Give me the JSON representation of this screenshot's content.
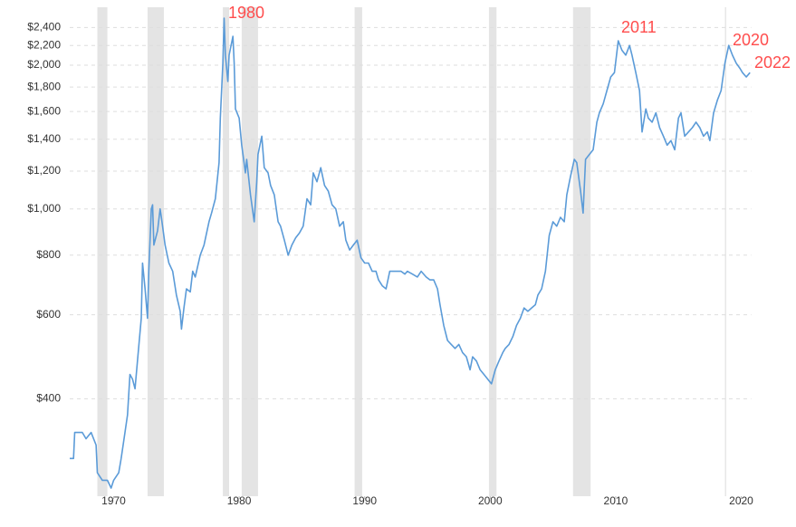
{
  "chart_data": {
    "type": "line",
    "log_scale": true,
    "grid": true,
    "color": "#5b9bd8",
    "recession_color": "#e4e4e4",
    "annotation_color": "#ff4d4d",
    "annotations": [
      "1980",
      "2011",
      "2020",
      "2022"
    ],
    "xlim": [
      1966.5,
      2020.8
    ],
    "xticks": [
      1970,
      1980,
      1990,
      2000,
      2010,
      2020
    ],
    "ylim": [
      250,
      2600
    ],
    "yticks": [
      {
        "value": 400,
        "label": "$400"
      },
      {
        "value": 600,
        "label": "$600"
      },
      {
        "value": 800,
        "label": "$800"
      },
      {
        "value": 1000,
        "label": "$1,000"
      },
      {
        "value": 1200,
        "label": "$1,200"
      },
      {
        "value": 1400,
        "label": "$1,400"
      },
      {
        "value": 1600,
        "label": "$1,600"
      },
      {
        "value": 1800,
        "label": "$1,800"
      },
      {
        "value": 2000,
        "label": "$2,000"
      },
      {
        "value": 2200,
        "label": "$2,200"
      },
      {
        "value": 2400,
        "label": "$2,400"
      }
    ],
    "recessions": [
      [
        1968.7,
        1969.5
      ],
      [
        1972.7,
        1974.0
      ],
      [
        1978.7,
        1979.2
      ],
      [
        1980.2,
        1981.5
      ],
      [
        1989.2,
        1989.8
      ],
      [
        1999.9,
        2000.5
      ],
      [
        2006.6,
        2008.0
      ],
      [
        2018.7,
        2018.8
      ]
    ],
    "x": [
      1966.5,
      1966.8,
      1966.9,
      1967.5,
      1967.8,
      1968.2,
      1968.6,
      1968.7,
      1969.1,
      1969.5,
      1969.8,
      1970.0,
      1970.4,
      1970.6,
      1970.9,
      1971.1,
      1971.3,
      1971.5,
      1971.7,
      1971.9,
      1972.2,
      1972.3,
      1972.5,
      1972.7,
      1972.8,
      1973.0,
      1973.1,
      1973.2,
      1973.5,
      1973.7,
      1973.8,
      1974.1,
      1974.4,
      1974.7,
      1975.0,
      1975.3,
      1975.4,
      1975.6,
      1975.8,
      1976.1,
      1976.3,
      1976.5,
      1976.9,
      1977.2,
      1977.6,
      1977.8,
      1978.1,
      1978.4,
      1978.5,
      1978.7,
      1978.8,
      1978.9,
      1979.1,
      1979.2,
      1979.5,
      1979.6,
      1979.7,
      1980.0,
      1980.2,
      1980.3,
      1980.5,
      1980.6,
      1980.9,
      1981.2,
      1981.4,
      1981.5,
      1981.8,
      1982.0,
      1982.3,
      1982.5,
      1982.8,
      1983.1,
      1983.3,
      1983.6,
      1983.9,
      1984.2,
      1984.5,
      1984.8,
      1985.1,
      1985.4,
      1985.7,
      1985.9,
      1986.2,
      1986.5,
      1986.8,
      1987.1,
      1987.4,
      1987.7,
      1988.0,
      1988.3,
      1988.5,
      1988.8,
      1989.1,
      1989.4,
      1989.7,
      1990.0,
      1990.3,
      1990.6,
      1990.9,
      1991.1,
      1991.4,
      1991.7,
      1992.0,
      1992.3,
      1992.6,
      1992.9,
      1993.2,
      1993.4,
      1993.8,
      1994.2,
      1994.5,
      1994.9,
      1995.2,
      1995.5,
      1995.8,
      1996.0,
      1996.3,
      1996.6,
      1996.9,
      1997.2,
      1997.5,
      1997.8,
      1998.1,
      1998.4,
      1998.6,
      1998.9,
      1999.2,
      1999.5,
      1999.8,
      2000.1,
      2000.4,
      2000.7,
      2001.0,
      2001.2,
      2001.5,
      2001.8,
      2002.1,
      2002.4,
      2002.7,
      2003.0,
      2003.3,
      2003.6,
      2003.8,
      2004.1,
      2004.4,
      2004.7,
      2005.0,
      2005.3,
      2005.6,
      2005.9,
      2006.1,
      2006.4,
      2006.7,
      2006.9,
      2007.2,
      2007.4,
      2007.6,
      2007.9,
      2008.2,
      2008.5,
      2008.7,
      2009.0,
      2009.3,
      2009.6,
      2009.9,
      2010.2,
      2010.5,
      2010.8,
      2011.1,
      2011.3,
      2011.6,
      2011.9,
      2012.1,
      2012.4,
      2012.6,
      2012.9,
      2013.2,
      2013.5,
      2013.8,
      2014.1,
      2014.4,
      2014.7,
      2015.0,
      2015.2,
      2015.5,
      2015.8,
      2016.1,
      2016.4,
      2016.7,
      2017.0,
      2017.3,
      2017.5,
      2017.8,
      2018.1,
      2018.4,
      2018.7,
      2019.0,
      2019.3,
      2019.6,
      2019.9,
      2020.1,
      2020.4,
      2020.7
    ],
    "values": [
      300,
      300,
      340,
      340,
      330,
      340,
      320,
      280,
      270,
      270,
      260,
      270,
      280,
      300,
      340,
      370,
      450,
      440,
      420,
      480,
      590,
      770,
      680,
      590,
      740,
      1000,
      1020,
      840,
      900,
      1000,
      960,
      840,
      770,
      740,
      660,
      610,
      560,
      620,
      680,
      670,
      740,
      720,
      800,
      840,
      940,
      980,
      1050,
      1250,
      1550,
      2020,
      2510,
      2100,
      1850,
      2100,
      2300,
      2020,
      1620,
      1550,
      1360,
      1300,
      1190,
      1270,
      1070,
      940,
      1140,
      1300,
      1420,
      1220,
      1190,
      1120,
      1070,
      940,
      920,
      860,
      800,
      840,
      870,
      890,
      920,
      1050,
      1020,
      1190,
      1140,
      1220,
      1120,
      1090,
      1020,
      1000,
      920,
      940,
      860,
      820,
      840,
      860,
      790,
      770,
      770,
      740,
      740,
      710,
      690,
      680,
      740,
      740,
      740,
      740,
      730,
      740,
      730,
      720,
      740,
      720,
      710,
      710,
      680,
      630,
      570,
      530,
      520,
      510,
      520,
      500,
      490,
      460,
      490,
      480,
      460,
      450,
      440,
      430,
      460,
      480,
      500,
      510,
      520,
      540,
      570,
      590,
      620,
      610,
      620,
      630,
      660,
      680,
      740,
      880,
      940,
      920,
      960,
      940,
      1070,
      1170,
      1270,
      1250,
      1090,
      980,
      1270,
      1300,
      1330,
      1520,
      1590,
      1660,
      1770,
      1890,
      1930,
      2250,
      2150,
      2100,
      2200,
      2100,
      1930,
      1770,
      1450,
      1620,
      1550,
      1520,
      1590,
      1480,
      1420,
      1360,
      1390,
      1330,
      1550,
      1590,
      1420,
      1450,
      1480,
      1520,
      1480,
      1420,
      1450,
      1390,
      1590,
      1690,
      1770,
      2020,
      2200,
      2100,
      2020,
      1970,
      1930,
      1890,
      1930
    ]
  }
}
